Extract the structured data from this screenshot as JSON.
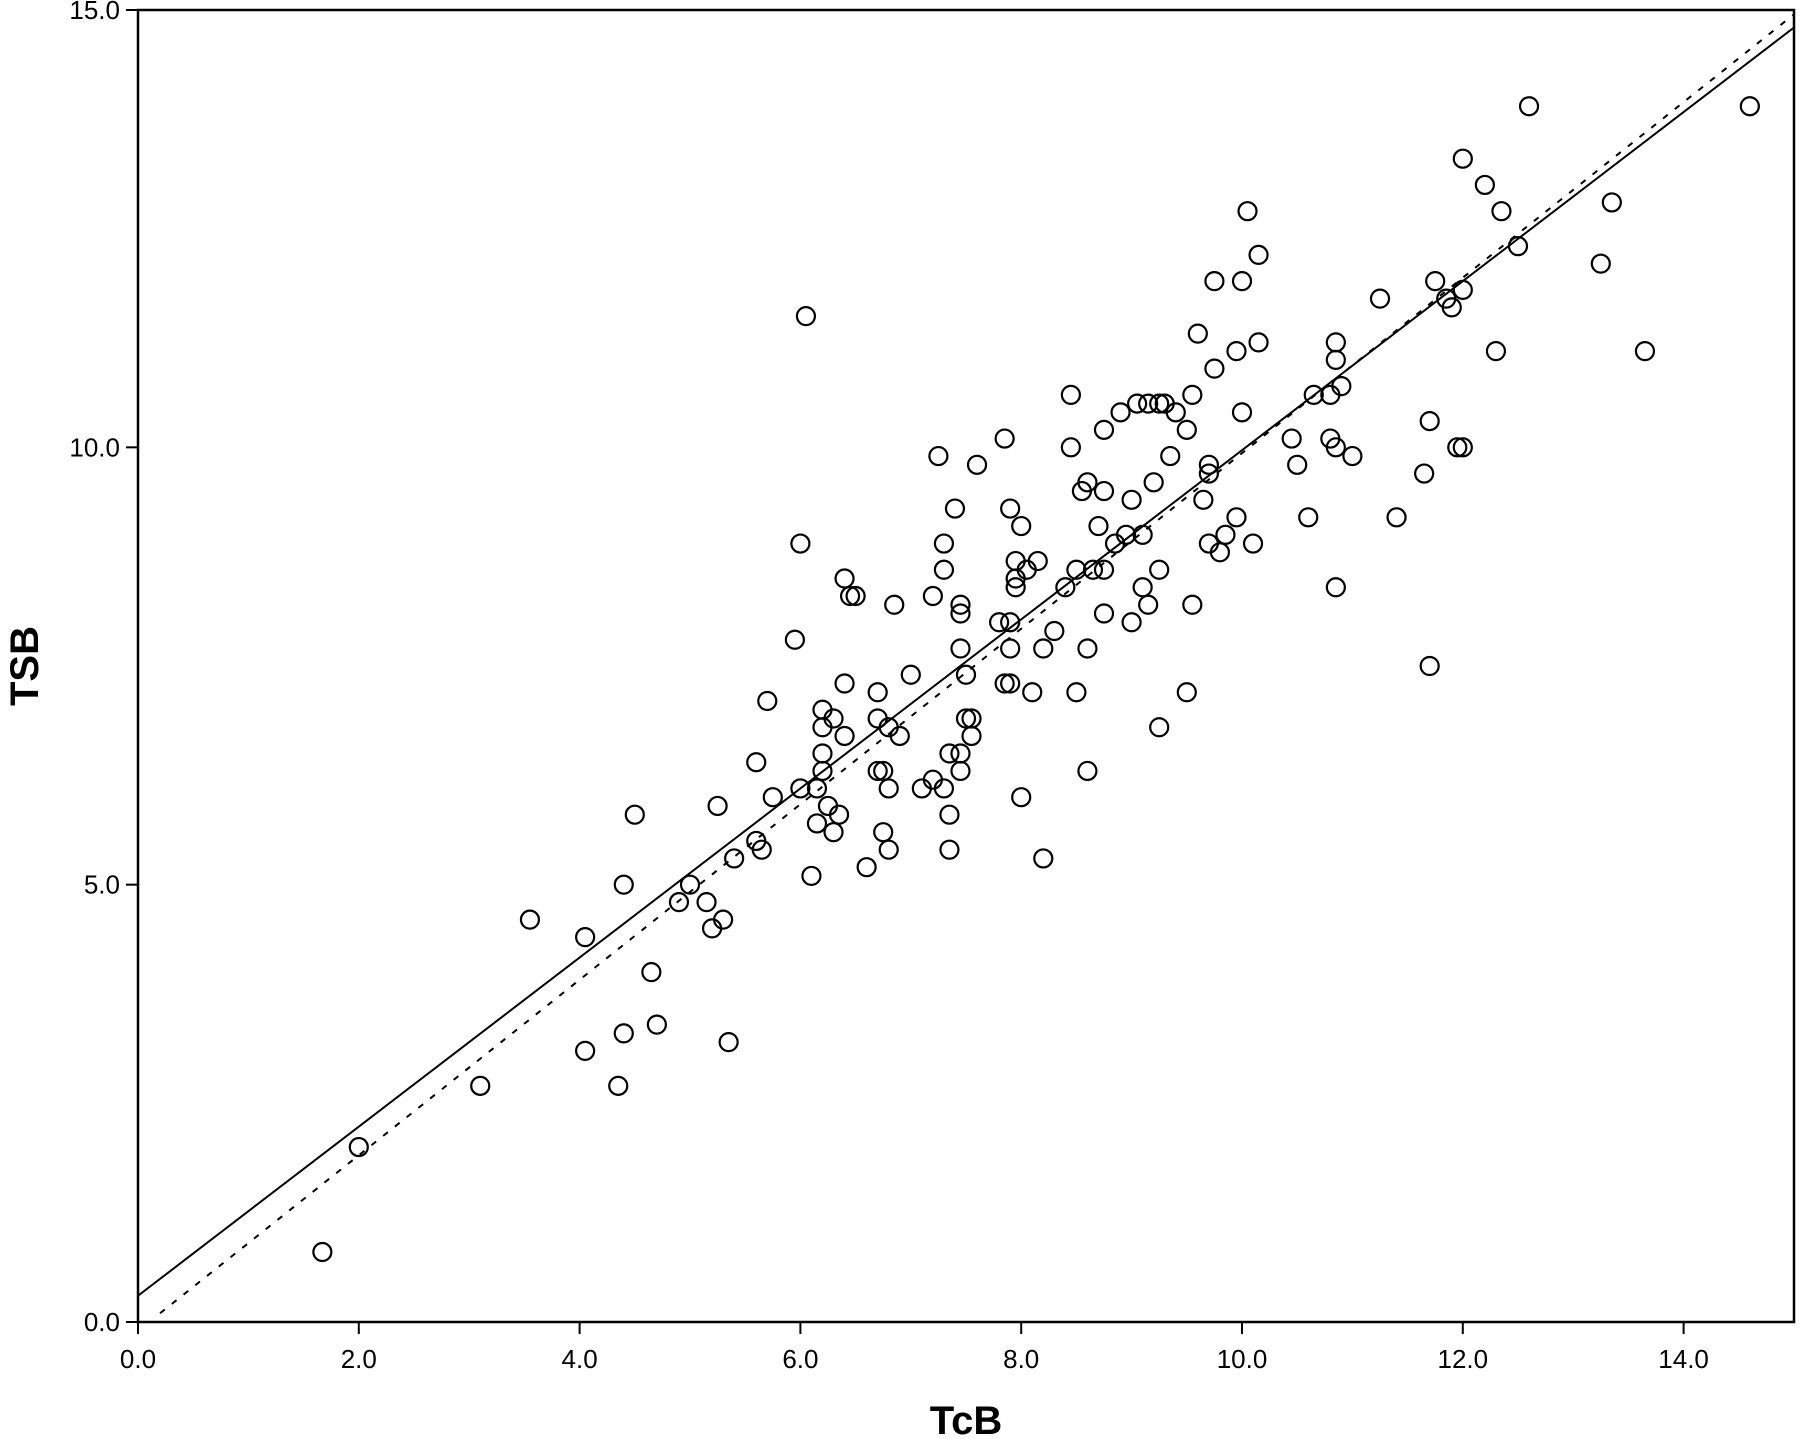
{
  "chart_data": {
    "type": "scatter",
    "title": "",
    "xlabel": "TcB",
    "ylabel": "TSB",
    "xlim": [
      0,
      15
    ],
    "ylim": [
      0,
      15
    ],
    "x_ticks": [
      "0.0",
      "2.0",
      "4.0",
      "6.0",
      "8.0",
      "10.0",
      "12.0",
      "14.0"
    ],
    "y_ticks": [
      "0.0",
      "5.0",
      "10.0",
      "15.0"
    ],
    "grid": false,
    "legend": "none",
    "marker": "open-circle",
    "colors": {
      "marker": "#000000",
      "line": "#000000",
      "background": "#ffffff"
    },
    "lines": [
      {
        "style": "solid",
        "from": [
          0,
          0.3
        ],
        "to": [
          15,
          14.8
        ]
      },
      {
        "style": "dotted",
        "from": [
          0.2,
          0.1
        ],
        "to": [
          15,
          14.95
        ]
      }
    ],
    "points": [
      [
        1.67,
        0.8
      ],
      [
        2.0,
        2.0
      ],
      [
        3.1,
        2.7
      ],
      [
        3.55,
        4.6
      ],
      [
        4.05,
        4.4
      ],
      [
        4.05,
        3.1
      ],
      [
        4.35,
        2.7
      ],
      [
        4.4,
        3.3
      ],
      [
        4.4,
        5.0
      ],
      [
        4.5,
        5.8
      ],
      [
        4.65,
        4.0
      ],
      [
        4.7,
        3.4
      ],
      [
        4.9,
        4.8
      ],
      [
        5.0,
        5.0
      ],
      [
        5.15,
        4.8
      ],
      [
        5.2,
        4.5
      ],
      [
        5.25,
        5.9
      ],
      [
        5.3,
        4.6
      ],
      [
        5.35,
        3.2
      ],
      [
        5.4,
        5.3
      ],
      [
        5.6,
        5.5
      ],
      [
        5.6,
        6.4
      ],
      [
        5.65,
        5.4
      ],
      [
        5.7,
        7.1
      ],
      [
        5.75,
        6.0
      ],
      [
        5.95,
        7.8
      ],
      [
        6.0,
        8.9
      ],
      [
        6.0,
        6.1
      ],
      [
        6.05,
        11.5
      ],
      [
        6.1,
        5.1
      ],
      [
        6.15,
        6.1
      ],
      [
        6.15,
        5.7
      ],
      [
        6.2,
        7.0
      ],
      [
        6.2,
        6.8
      ],
      [
        6.2,
        6.5
      ],
      [
        6.2,
        6.3
      ],
      [
        6.25,
        5.9
      ],
      [
        6.3,
        6.9
      ],
      [
        6.3,
        5.6
      ],
      [
        6.35,
        5.8
      ],
      [
        6.4,
        8.5
      ],
      [
        6.4,
        6.7
      ],
      [
        6.4,
        7.3
      ],
      [
        6.45,
        8.3
      ],
      [
        6.5,
        8.3
      ],
      [
        6.6,
        5.2
      ],
      [
        6.7,
        7.2
      ],
      [
        6.7,
        6.9
      ],
      [
        6.7,
        6.3
      ],
      [
        6.75,
        6.3
      ],
      [
        6.75,
        5.6
      ],
      [
        6.8,
        6.8
      ],
      [
        6.8,
        6.1
      ],
      [
        6.8,
        5.4
      ],
      [
        6.85,
        8.2
      ],
      [
        6.9,
        6.7
      ],
      [
        7.0,
        7.4
      ],
      [
        7.1,
        6.1
      ],
      [
        7.2,
        8.3
      ],
      [
        7.2,
        6.2
      ],
      [
        7.25,
        9.9
      ],
      [
        7.3,
        8.9
      ],
      [
        7.3,
        8.6
      ],
      [
        7.3,
        6.1
      ],
      [
        7.35,
        6.5
      ],
      [
        7.35,
        5.8
      ],
      [
        7.35,
        5.4
      ],
      [
        7.4,
        9.3
      ],
      [
        7.45,
        8.2
      ],
      [
        7.45,
        8.1
      ],
      [
        7.45,
        7.7
      ],
      [
        7.45,
        6.5
      ],
      [
        7.45,
        6.3
      ],
      [
        7.5,
        6.9
      ],
      [
        7.5,
        7.4
      ],
      [
        7.55,
        6.7
      ],
      [
        7.55,
        6.9
      ],
      [
        7.6,
        9.8
      ],
      [
        7.8,
        8.0
      ],
      [
        7.85,
        10.1
      ],
      [
        7.85,
        7.3
      ],
      [
        7.9,
        7.7
      ],
      [
        7.9,
        8.0
      ],
      [
        7.9,
        9.3
      ],
      [
        7.9,
        7.3
      ],
      [
        7.95,
        8.7
      ],
      [
        7.95,
        8.5
      ],
      [
        7.95,
        8.4
      ],
      [
        8.0,
        9.1
      ],
      [
        8.0,
        6.0
      ],
      [
        8.05,
        8.6
      ],
      [
        8.1,
        7.2
      ],
      [
        8.15,
        8.7
      ],
      [
        8.2,
        7.7
      ],
      [
        8.2,
        5.3
      ],
      [
        8.3,
        7.9
      ],
      [
        8.4,
        8.4
      ],
      [
        8.45,
        10.6
      ],
      [
        8.45,
        10.0
      ],
      [
        8.5,
        8.6
      ],
      [
        8.5,
        7.2
      ],
      [
        8.55,
        9.5
      ],
      [
        8.6,
        9.6
      ],
      [
        8.6,
        6.3
      ],
      [
        8.6,
        7.7
      ],
      [
        8.65,
        8.6
      ],
      [
        8.7,
        9.1
      ],
      [
        8.75,
        10.2
      ],
      [
        8.75,
        9.5
      ],
      [
        8.75,
        8.6
      ],
      [
        8.75,
        8.1
      ],
      [
        8.85,
        8.9
      ],
      [
        8.9,
        10.4
      ],
      [
        8.95,
        9.0
      ],
      [
        9.0,
        8.0
      ],
      [
        9.0,
        9.4
      ],
      [
        9.05,
        10.5
      ],
      [
        9.1,
        8.4
      ],
      [
        9.1,
        9.0
      ],
      [
        9.15,
        10.5
      ],
      [
        9.15,
        8.2
      ],
      [
        9.2,
        9.6
      ],
      [
        9.25,
        10.5
      ],
      [
        9.25,
        8.6
      ],
      [
        9.25,
        6.8
      ],
      [
        9.3,
        10.5
      ],
      [
        9.35,
        9.9
      ],
      [
        9.4,
        10.4
      ],
      [
        9.5,
        10.2
      ],
      [
        9.5,
        7.2
      ],
      [
        9.55,
        10.6
      ],
      [
        9.55,
        8.2
      ],
      [
        9.6,
        11.3
      ],
      [
        9.65,
        9.4
      ],
      [
        9.7,
        9.8
      ],
      [
        9.7,
        9.7
      ],
      [
        9.7,
        8.9
      ],
      [
        9.75,
        11.9
      ],
      [
        9.75,
        10.9
      ],
      [
        9.8,
        8.8
      ],
      [
        9.85,
        9.0
      ],
      [
        9.95,
        11.1
      ],
      [
        9.95,
        9.2
      ],
      [
        10.0,
        10.4
      ],
      [
        10.0,
        11.9
      ],
      [
        10.05,
        12.7
      ],
      [
        10.1,
        8.9
      ],
      [
        10.15,
        11.2
      ],
      [
        10.15,
        12.2
      ],
      [
        10.45,
        10.1
      ],
      [
        10.5,
        9.8
      ],
      [
        10.6,
        9.2
      ],
      [
        10.65,
        10.6
      ],
      [
        10.8,
        10.6
      ],
      [
        10.8,
        10.1
      ],
      [
        10.85,
        11.2
      ],
      [
        10.85,
        11.0
      ],
      [
        10.85,
        10.0
      ],
      [
        10.85,
        8.4
      ],
      [
        10.9,
        10.7
      ],
      [
        11.0,
        9.9
      ],
      [
        11.25,
        11.7
      ],
      [
        11.4,
        9.2
      ],
      [
        11.65,
        9.7
      ],
      [
        11.7,
        10.3
      ],
      [
        11.7,
        7.5
      ],
      [
        11.75,
        11.9
      ],
      [
        11.85,
        11.7
      ],
      [
        11.9,
        11.6
      ],
      [
        11.95,
        10.0
      ],
      [
        12.0,
        13.3
      ],
      [
        12.0,
        11.8
      ],
      [
        12.0,
        10.0
      ],
      [
        12.2,
        13.0
      ],
      [
        12.3,
        11.1
      ],
      [
        12.35,
        12.7
      ],
      [
        12.5,
        12.3
      ],
      [
        12.6,
        13.9
      ],
      [
        13.25,
        12.1
      ],
      [
        13.35,
        12.8
      ],
      [
        13.65,
        11.1
      ],
      [
        14.6,
        13.9
      ]
    ]
  }
}
